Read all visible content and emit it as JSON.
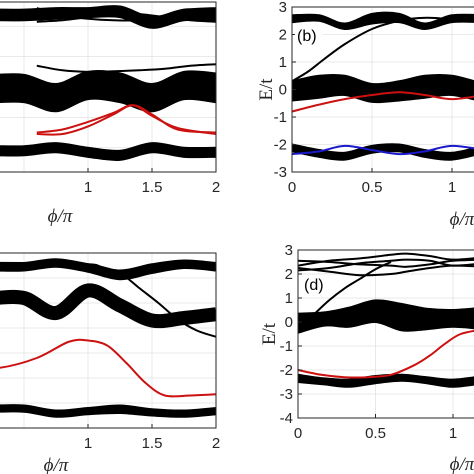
{
  "colors": {
    "black": "#000000",
    "red": "#cc1111",
    "blue": "#1a1acc",
    "grid": "#e3e3e3"
  },
  "chart_data": [
    {
      "panel": "a",
      "type": "line",
      "title": "",
      "xlabel": "ϕ/π",
      "ylabel": "",
      "xlim": [
        0.0,
        2.0
      ],
      "ylim": [
        -2.8,
        2.8
      ],
      "xticks": [
        "1",
        "1.5",
        "2"
      ],
      "xtick_values": [
        1,
        1.5,
        2
      ],
      "yticks": [],
      "grid": true,
      "bands": [
        {
          "kind": "band",
          "color": "#000000",
          "x": [
            0.0,
            0.25,
            0.5,
            0.75,
            1.0,
            1.25,
            1.5,
            1.75,
            2.0
          ],
          "upper": [
            2.55,
            2.55,
            2.55,
            2.6,
            2.6,
            2.65,
            2.3,
            2.55,
            2.55
          ],
          "lower": [
            2.2,
            2.2,
            2.2,
            2.25,
            2.3,
            2.3,
            1.95,
            2.2,
            2.2
          ]
        },
        {
          "kind": "band",
          "color": "#000000",
          "x": [
            0.0,
            0.25,
            0.5,
            0.75,
            1.0,
            1.25,
            1.5,
            1.75,
            2.0
          ],
          "upper": [
            0.4,
            0.4,
            0.4,
            0.1,
            0.5,
            0.45,
            0.1,
            0.5,
            0.45
          ],
          "lower": [
            -0.5,
            -0.5,
            -0.5,
            -0.8,
            -0.4,
            -0.5,
            -0.8,
            -0.4,
            -0.5
          ]
        },
        {
          "kind": "band",
          "color": "#000000",
          "x": [
            0.0,
            0.25,
            0.5,
            0.75,
            1.0,
            1.25,
            1.5,
            1.75,
            2.0
          ],
          "upper": [
            -1.95,
            -1.95,
            -1.95,
            -1.85,
            -2.0,
            -2.1,
            -1.85,
            -2.0,
            -2.0
          ],
          "lower": [
            -2.25,
            -2.25,
            -2.25,
            -2.15,
            -2.3,
            -2.4,
            -2.15,
            -2.3,
            -2.3
          ]
        }
      ],
      "lines": [
        {
          "color": "#000000",
          "x": [
            0.6,
            0.8,
            1.0,
            1.2,
            1.4,
            1.6,
            1.8,
            2.0
          ],
          "y": [
            2.6,
            2.35,
            2.25,
            2.2,
            2.2,
            2.3,
            2.55,
            2.6
          ]
        },
        {
          "color": "#000000",
          "x": [
            0.6,
            0.8,
            1.0,
            1.2,
            1.4,
            1.6,
            1.8,
            2.0
          ],
          "y": [
            2.15,
            2.2,
            2.3,
            2.4,
            2.4,
            2.3,
            2.2,
            2.15
          ]
        },
        {
          "color": "#000000",
          "x": [
            0.6,
            0.8,
            1.0,
            1.2,
            1.4,
            1.6,
            1.8,
            2.0
          ],
          "y": [
            0.7,
            0.55,
            0.5,
            0.52,
            0.55,
            0.6,
            0.7,
            0.75
          ]
        },
        {
          "color": "#cc1111",
          "x": [
            0.6,
            0.8,
            1.0,
            1.2,
            1.35,
            1.5,
            1.7,
            2.0
          ],
          "y": [
            -1.55,
            -1.55,
            -1.3,
            -0.9,
            -0.6,
            -0.9,
            -1.4,
            -1.5
          ]
        },
        {
          "color": "#cc1111",
          "x": [
            0.6,
            0.8,
            1.0,
            1.2,
            1.35,
            1.5,
            1.7,
            2.0
          ],
          "y": [
            -1.5,
            -1.4,
            -1.15,
            -0.85,
            -0.6,
            -0.95,
            -1.35,
            -1.55
          ]
        }
      ]
    },
    {
      "panel": "b",
      "type": "line",
      "title": "",
      "label": "(b)",
      "xlabel": "ϕ/π",
      "ylabel": "E/t",
      "xlim": [
        0.0,
        1.2
      ],
      "ylim": [
        -3.0,
        3.0
      ],
      "xticks": [
        "0",
        "0.5",
        "1"
      ],
      "xtick_values": [
        0,
        0.5,
        1
      ],
      "yticks": [
        "-3",
        "-2",
        "-1",
        "0",
        "1",
        "2",
        "3"
      ],
      "ytick_values": [
        -3,
        -2,
        -1,
        0,
        1,
        2,
        3
      ],
      "grid": true,
      "bands": [
        {
          "kind": "band",
          "color": "#000000",
          "x": [
            0.0,
            0.17,
            0.33,
            0.5,
            0.67,
            0.83,
            1.0,
            1.2
          ],
          "upper": [
            2.7,
            2.7,
            2.4,
            2.75,
            2.75,
            2.4,
            2.7,
            2.7
          ],
          "lower": [
            2.45,
            2.5,
            2.2,
            2.4,
            2.45,
            2.2,
            2.45,
            2.45
          ]
        },
        {
          "kind": "band",
          "color": "#000000",
          "x": [
            0.0,
            0.17,
            0.33,
            0.5,
            0.67,
            0.83,
            1.0,
            1.2
          ],
          "upper": [
            0.3,
            0.5,
            0.5,
            0.2,
            0.3,
            0.5,
            0.5,
            0.2
          ],
          "lower": [
            -0.4,
            -0.3,
            -0.2,
            -0.45,
            -0.4,
            -0.3,
            -0.2,
            -0.45
          ]
        },
        {
          "kind": "band",
          "color": "#000000",
          "x": [
            0.0,
            0.17,
            0.33,
            0.5,
            0.67,
            0.83,
            1.0,
            1.2
          ],
          "upper": [
            -2.0,
            -2.2,
            -2.3,
            -2.05,
            -2.0,
            -2.2,
            -2.3,
            -2.05
          ],
          "lower": [
            -2.25,
            -2.45,
            -2.55,
            -2.3,
            -2.25,
            -2.45,
            -2.55,
            -2.3
          ]
        }
      ],
      "lines": [
        {
          "color": "#000000",
          "x": [
            0.0,
            0.1,
            0.2,
            0.33,
            0.5,
            0.67,
            0.8,
            0.9,
            1.0,
            1.2
          ],
          "y": [
            0.3,
            0.65,
            1.1,
            1.65,
            2.2,
            2.5,
            2.6,
            2.6,
            2.55,
            2.55
          ]
        },
        {
          "color": "#cc1111",
          "x": [
            0.0,
            0.17,
            0.33,
            0.5,
            0.67,
            0.83,
            1.0,
            1.2
          ],
          "y": [
            -0.8,
            -0.55,
            -0.35,
            -0.2,
            -0.1,
            -0.2,
            -0.35,
            -0.2
          ]
        },
        {
          "color": "#1a1acc",
          "x": [
            0.0,
            0.17,
            0.33,
            0.5,
            0.67,
            0.83,
            1.0,
            1.2
          ],
          "y": [
            -2.35,
            -2.25,
            -2.05,
            -2.2,
            -2.35,
            -2.25,
            -2.05,
            -2.2
          ]
        }
      ]
    },
    {
      "panel": "c",
      "type": "line",
      "title": "",
      "xlabel": "ϕ/π",
      "ylabel": "",
      "xlim": [
        0.0,
        2.0
      ],
      "ylim": [
        -4.0,
        3.0
      ],
      "xticks": [
        "1",
        "1.5",
        "2"
      ],
      "xtick_values": [
        1,
        1.5,
        2
      ],
      "yticks": [],
      "grid": true,
      "bands": [
        {
          "kind": "band",
          "color": "#000000",
          "x": [
            0.0,
            0.25,
            0.5,
            0.75,
            1.0,
            1.25,
            1.5,
            1.75,
            2.0
          ],
          "upper": [
            2.6,
            2.6,
            2.6,
            2.75,
            2.55,
            2.3,
            2.55,
            2.7,
            2.6
          ],
          "lower": [
            2.3,
            2.3,
            2.3,
            2.45,
            2.25,
            1.95,
            2.2,
            2.4,
            2.3
          ]
        },
        {
          "kind": "band",
          "color": "#000000",
          "x": [
            0.0,
            0.25,
            0.5,
            0.75,
            1.0,
            1.25,
            1.5,
            1.75,
            2.0
          ],
          "upper": [
            1.2,
            1.2,
            1.2,
            0.6,
            1.5,
            0.9,
            0.3,
            0.4,
            0.55
          ]
        },
        {
          "kind": "band",
          "color": "#000000",
          "x": [
            0.0,
            0.25,
            0.5,
            0.75,
            1.0,
            1.25,
            1.5,
            1.75,
            2.0
          ],
          "upper": [
            -3.1,
            -3.1,
            -3.1,
            -3.3,
            -3.2,
            -3.1,
            -3.25,
            -3.3,
            -3.2
          ],
          "lower": [
            -3.35,
            -3.35,
            -3.35,
            -3.55,
            -3.45,
            -3.4,
            -3.5,
            -3.55,
            -3.45
          ]
        }
      ],
      "lines": [
        {
          "color": "#000000",
          "x": [
            0.0,
            0.5,
            1.0,
            1.1,
            1.25,
            1.4,
            1.55,
            1.7,
            1.85,
            2.0
          ],
          "y": [
            2.6,
            2.6,
            2.55,
            2.45,
            2.2,
            1.6,
            1.0,
            0.35,
            -0.1,
            -0.35
          ]
        },
        {
          "color": "#cc1111",
          "x": [
            0.0,
            0.3,
            0.6,
            0.85,
            1.0,
            1.15,
            1.3,
            1.45,
            1.6,
            1.8,
            2.0
          ],
          "y": [
            -1.6,
            -1.6,
            -1.2,
            -0.55,
            -0.5,
            -0.7,
            -1.4,
            -2.2,
            -2.7,
            -2.7,
            -2.65
          ]
        }
      ]
    },
    {
      "panel": "d",
      "type": "line",
      "title": "",
      "label": "(d)",
      "xlabel": "ϕ/π",
      "ylabel": "E/t",
      "xlim": [
        0.0,
        1.2
      ],
      "ylim": [
        -4.0,
        3.0
      ],
      "xticks": [
        "0",
        "0.5",
        "1"
      ],
      "xtick_values": [
        0,
        0.5,
        1
      ],
      "yticks": [
        "-4",
        "-3",
        "-2",
        "-1",
        "0",
        "1",
        "2",
        "3"
      ],
      "ytick_values": [
        -4,
        -3,
        -2,
        -1,
        0,
        1,
        2,
        3
      ],
      "grid": true,
      "bands": [
        {
          "kind": "band",
          "color": "#000000",
          "x": [
            0.0,
            0.17,
            0.33,
            0.5,
            0.67,
            0.83,
            1.0,
            1.2
          ],
          "upper": [
            0.35,
            0.4,
            0.6,
            0.9,
            0.75,
            0.55,
            0.5,
            0.6
          ],
          "lower": [
            -0.45,
            -0.15,
            -0.2,
            0.0,
            -0.35,
            -0.3,
            -0.2,
            -0.3
          ]
        },
        {
          "kind": "band",
          "color": "#000000",
          "x": [
            0.0,
            0.17,
            0.33,
            0.5,
            0.67,
            0.83,
            1.0,
            1.2
          ],
          "upper": [
            -2.2,
            -2.35,
            -2.4,
            -2.25,
            -2.2,
            -2.3,
            -2.4,
            -2.25
          ],
          "lower": [
            -2.5,
            -2.6,
            -2.7,
            -2.55,
            -2.45,
            -2.55,
            -2.7,
            -2.55
          ]
        }
      ],
      "lines": [
        {
          "color": "#000000",
          "x": [
            0.0,
            0.2,
            0.4,
            0.6,
            0.7,
            0.85,
            1.0,
            1.2
          ],
          "y": [
            2.35,
            2.55,
            2.65,
            2.8,
            2.85,
            2.75,
            2.6,
            2.7
          ]
        },
        {
          "color": "#000000",
          "x": [
            0.0,
            0.2,
            0.4,
            0.6,
            0.7,
            0.85,
            1.0,
            1.2
          ],
          "y": [
            2.15,
            2.25,
            2.45,
            2.55,
            2.6,
            2.55,
            2.35,
            2.45
          ]
        },
        {
          "color": "#000000",
          "x": [
            0.0,
            0.2,
            0.4,
            0.6,
            0.7,
            0.85,
            1.0,
            1.2
          ],
          "y": [
            2.55,
            2.5,
            2.4,
            2.35,
            2.3,
            2.4,
            2.55,
            2.6
          ]
        },
        {
          "color": "#000000",
          "x": [
            0.0,
            0.2,
            0.4,
            0.6,
            0.7,
            0.85,
            1.0,
            1.2
          ],
          "y": [
            2.25,
            2.1,
            1.95,
            2.0,
            2.1,
            2.25,
            2.35,
            2.3
          ]
        },
        {
          "color": "#000000",
          "x": [
            0.0,
            0.1,
            0.2,
            0.3,
            0.4,
            0.5,
            0.6
          ],
          "y": [
            -0.3,
            0.3,
            0.9,
            1.4,
            1.8,
            2.2,
            2.5
          ]
        },
        {
          "color": "#cc1111",
          "x": [
            0.0,
            0.15,
            0.3,
            0.45,
            0.6,
            0.75,
            0.85,
            0.95,
            1.05,
            1.2
          ],
          "y": [
            -2.0,
            -2.2,
            -2.3,
            -2.3,
            -2.2,
            -1.8,
            -1.4,
            -0.9,
            -0.5,
            -0.3
          ]
        }
      ]
    }
  ]
}
